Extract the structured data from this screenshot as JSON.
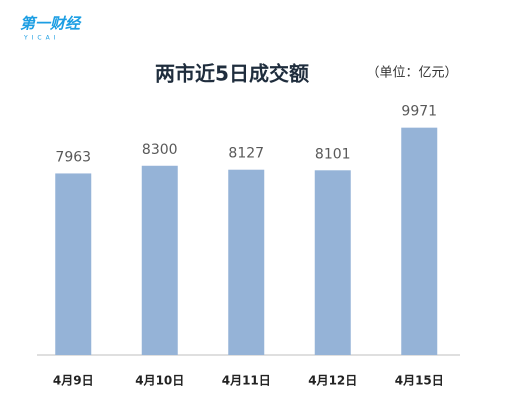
{
  "logo": {
    "name": "第一财经",
    "sub": "YICAI"
  },
  "chart_data": {
    "type": "bar",
    "title": "两市近5日成交额",
    "subtitle": "（单位：亿元）",
    "categories": [
      "4月9日",
      "4月10日",
      "4月11日",
      "4月12日",
      "4月15日"
    ],
    "values": [
      7963,
      8300,
      8127,
      8101,
      9971
    ],
    "color": "#95b3d7",
    "ylim": [
      0,
      10000
    ]
  }
}
